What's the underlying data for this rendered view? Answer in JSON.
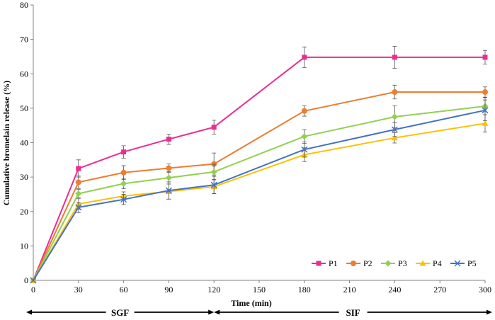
{
  "chart_data": {
    "type": "line",
    "title": "",
    "xlabel": "Time (min)",
    "ylabel": "Cumulative bromelain release (%)",
    "xlim": [
      0,
      300
    ],
    "ylim": [
      0,
      80
    ],
    "xticks": [
      0,
      30,
      60,
      90,
      120,
      150,
      180,
      210,
      240,
      270,
      300
    ],
    "yticks": [
      0,
      10,
      20,
      30,
      40,
      50,
      60,
      70,
      80
    ],
    "x": [
      0,
      30,
      60,
      90,
      120,
      180,
      240,
      300
    ],
    "grid": false,
    "legend_position": "bottom-right",
    "series": [
      {
        "name": "P1",
        "color": "#EC2C93",
        "marker": "square",
        "values": [
          0,
          32.5,
          37.3,
          41.0,
          44.5,
          64.8,
          64.8,
          64.8
        ],
        "errors": [
          0,
          2.5,
          1.8,
          1.5,
          2.0,
          3.0,
          3.2,
          2.0
        ]
      },
      {
        "name": "P2",
        "color": "#ED7D31",
        "marker": "circle",
        "values": [
          0,
          28.5,
          31.3,
          32.6,
          33.8,
          49.2,
          54.7,
          54.7
        ],
        "errors": [
          0,
          1.8,
          2.0,
          1.2,
          3.2,
          1.5,
          2.0,
          1.5
        ]
      },
      {
        "name": "P3",
        "color": "#92D050",
        "marker": "diamond",
        "values": [
          0,
          25.2,
          28.1,
          29.8,
          31.5,
          41.8,
          47.5,
          50.6
        ],
        "errors": [
          0,
          1.2,
          1.5,
          1.8,
          2.2,
          2.0,
          3.2,
          2.5
        ]
      },
      {
        "name": "P4",
        "color": "#FFC000",
        "marker": "triangle",
        "values": [
          0,
          22.2,
          24.5,
          25.8,
          27.2,
          36.5,
          41.4,
          45.6
        ],
        "errors": [
          0,
          1.5,
          1.2,
          2.2,
          2.0,
          2.0,
          1.5,
          2.5
        ]
      },
      {
        "name": "P5",
        "color": "#4472C4",
        "marker": "x",
        "values": [
          0,
          21.2,
          23.5,
          26.1,
          27.7,
          38.0,
          43.8,
          49.4
        ],
        "errors": [
          0,
          1.5,
          1.5,
          2.5,
          2.5,
          2.2,
          2.0,
          3.0
        ]
      }
    ],
    "phases": [
      {
        "label": "SGF",
        "from": 0,
        "to": 120
      },
      {
        "label": "SIF",
        "from": 120,
        "to": 300
      }
    ]
  }
}
